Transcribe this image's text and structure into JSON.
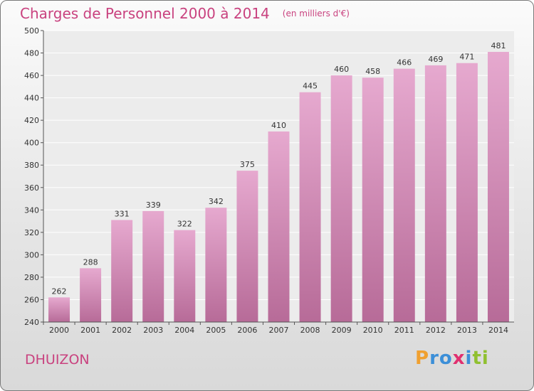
{
  "header": {
    "title": "Charges de Personnel 2000 à 2014",
    "unit": "(en milliers d'€)"
  },
  "footer": {
    "commune": "DHUIZON",
    "logo_text": "Proxiti"
  },
  "colors": {
    "title": "#c9427f",
    "bar_top": "#e6a9cf",
    "bar_bottom": "#b76b98",
    "plot_bg": "#ececec",
    "grid": "#ffffff",
    "logo_letters": [
      "#f0a030",
      "#3c8fd8",
      "#3c8fd8",
      "#e03070",
      "#3c8fd8",
      "#90c030",
      "#90c030"
    ]
  },
  "chart_data": {
    "type": "bar",
    "title": "Charges de Personnel 2000 à 2014",
    "subtitle": "(en milliers d'€)",
    "xlabel": "",
    "ylabel": "",
    "categories": [
      "2000",
      "2001",
      "2002",
      "2003",
      "2004",
      "2005",
      "2006",
      "2007",
      "2008",
      "2009",
      "2010",
      "2011",
      "2012",
      "2013",
      "2014"
    ],
    "values": [
      262,
      288,
      331,
      339,
      322,
      342,
      375,
      410,
      445,
      460,
      458,
      466,
      469,
      471,
      481
    ],
    "ylim": [
      240,
      500
    ],
    "yticks": [
      240,
      260,
      280,
      300,
      320,
      340,
      360,
      380,
      400,
      420,
      440,
      460,
      480,
      500
    ],
    "grid": true,
    "legend": "none"
  }
}
